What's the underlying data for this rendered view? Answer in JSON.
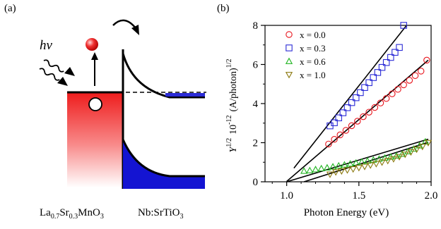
{
  "panels": {
    "a": {
      "label": "(a)",
      "photon_label": "hv",
      "left_material": {
        "base": "La",
        "s1": "0.7",
        "mid": "Sr",
        "s2": "0.3",
        "tail": "MnO",
        "s3": "3"
      },
      "right_material": {
        "base": "Nb:SrTiO",
        "s1": "3"
      }
    },
    "b": {
      "label": "(b)"
    }
  },
  "colors": {
    "x_0_0": "#e8141c",
    "x_0_3": "#2b2bd6",
    "x_0_6": "#22b522",
    "x_1_0": "#8c7a10",
    "blue_fill": "#1414d2",
    "red_fill": "#ee1c1c"
  },
  "chart_data": {
    "type": "scatter",
    "title": "",
    "xlabel": "Photon Energy (eV)",
    "ylabel_parts": {
      "y": "Y",
      "exp1": "1/2",
      "mid": "10",
      "exp2": "-12",
      "unit": "(A/photon)",
      "exp3": "1/2"
    },
    "xlim": [
      0.85,
      2.0
    ],
    "ylim": [
      0,
      8
    ],
    "xticks": [
      1.0,
      1.5,
      2.0
    ],
    "xtick_labels": [
      "1.0",
      "1.5",
      "2.0"
    ],
    "yticks": [
      0,
      2,
      4,
      6,
      8
    ],
    "ytick_labels": [
      "0",
      "2",
      "4",
      "6",
      "8"
    ],
    "legend_position": "top-left",
    "series": [
      {
        "name": "x = 0.0",
        "marker": "circle",
        "x": [
          1.29,
          1.33,
          1.37,
          1.41,
          1.45,
          1.49,
          1.53,
          1.57,
          1.61,
          1.65,
          1.69,
          1.73,
          1.77,
          1.81,
          1.85,
          1.89,
          1.93,
          1.97
        ],
        "y": [
          1.93,
          2.17,
          2.4,
          2.63,
          2.87,
          3.1,
          3.33,
          3.56,
          3.8,
          4.03,
          4.26,
          4.5,
          4.73,
          4.96,
          5.19,
          5.43,
          5.66,
          6.22
        ],
        "fit": {
          "x0": 1.0,
          "x1": 1.98,
          "y0": 0.02,
          "y1": 6.22
        }
      },
      {
        "name": "x = 0.3",
        "marker": "square",
        "x": [
          1.3,
          1.33,
          1.36,
          1.39,
          1.42,
          1.45,
          1.48,
          1.51,
          1.54,
          1.57,
          1.6,
          1.63,
          1.66,
          1.69,
          1.72,
          1.75,
          1.78,
          1.81
        ],
        "y": [
          2.86,
          3.02,
          3.27,
          3.53,
          3.79,
          4.05,
          4.3,
          4.56,
          4.82,
          5.07,
          5.33,
          5.59,
          5.85,
          6.1,
          6.36,
          6.62,
          6.87,
          8.0
        ],
        "fit": {
          "x0": 1.05,
          "x1": 1.83,
          "y0": 0.7,
          "y1": 8.0
        }
      },
      {
        "name": "x = 0.6",
        "marker": "triangle-up",
        "x": [
          1.12,
          1.16,
          1.2,
          1.24,
          1.28,
          1.32,
          1.36,
          1.4,
          1.44,
          1.48,
          1.52,
          1.56,
          1.6,
          1.64,
          1.68,
          1.72,
          1.76,
          1.8,
          1.84,
          1.88,
          1.92,
          1.96
        ],
        "y": [
          0.55,
          0.58,
          0.63,
          0.68,
          0.72,
          0.77,
          0.82,
          0.87,
          0.92,
          0.97,
          1.02,
          1.07,
          1.12,
          1.17,
          1.22,
          1.27,
          1.33,
          1.42,
          1.55,
          1.68,
          1.85,
          2.05
        ],
        "fit": {
          "x0": 1.0,
          "x1": 1.98,
          "y0": 0.0,
          "y1": 2.18
        }
      },
      {
        "name": "x = 1.0",
        "marker": "triangle-down",
        "x": [
          1.3,
          1.34,
          1.38,
          1.42,
          1.46,
          1.5,
          1.54,
          1.58,
          1.62,
          1.66,
          1.7,
          1.74,
          1.78,
          1.82,
          1.86,
          1.9,
          1.94,
          1.98
        ],
        "y": [
          0.38,
          0.5,
          0.55,
          0.6,
          0.65,
          0.72,
          0.78,
          0.85,
          0.92,
          1.0,
          1.08,
          1.17,
          1.28,
          1.4,
          1.52,
          1.66,
          1.8,
          2.0
        ],
        "fit": {
          "x0": 1.12,
          "x1": 1.98,
          "y0": 0.0,
          "y1": 2.02
        }
      }
    ]
  }
}
